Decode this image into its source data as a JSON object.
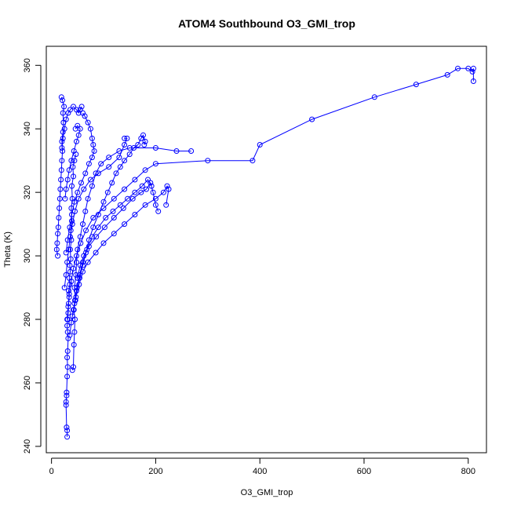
{
  "chart_data": {
    "type": "scatter",
    "title": "ATOM4 Southbound O3_GMI_trop",
    "xlabel": "O3_GMI_trop",
    "ylabel": "Theta (K)",
    "xlim": [
      -10,
      835
    ],
    "ylim": [
      238,
      366
    ],
    "xticks": [
      0,
      200,
      400,
      600,
      800
    ],
    "yticks": [
      240,
      260,
      280,
      300,
      320,
      340,
      360
    ],
    "grid": false,
    "legend": "none",
    "marker": "open-circle",
    "connected": true,
    "color": "#0000ff",
    "series": [
      {
        "points": [
          [
            30,
            243
          ],
          [
            30,
            245
          ],
          [
            29,
            246
          ],
          [
            28,
            253
          ],
          [
            28,
            254
          ],
          [
            29,
            256
          ],
          [
            29,
            257
          ],
          [
            30,
            262
          ],
          [
            31,
            265
          ],
          [
            30,
            268
          ],
          [
            31,
            270
          ],
          [
            32,
            274
          ],
          [
            31,
            276
          ],
          [
            30,
            278
          ],
          [
            31,
            280
          ],
          [
            32,
            282
          ],
          [
            33,
            285
          ],
          [
            34,
            287
          ],
          [
            33,
            289
          ],
          [
            35,
            291
          ],
          [
            34,
            293
          ],
          [
            36,
            295
          ],
          [
            35,
            297
          ],
          [
            37,
            299
          ],
          [
            36,
            302
          ],
          [
            38,
            305
          ],
          [
            37,
            308
          ],
          [
            39,
            311
          ],
          [
            38,
            315
          ],
          [
            40,
            318
          ],
          [
            39,
            322
          ],
          [
            42,
            325
          ],
          [
            41,
            328
          ],
          [
            44,
            330
          ],
          [
            47,
            332
          ]
        ]
      },
      {
        "points": [
          [
            12,
            300
          ],
          [
            10,
            302
          ],
          [
            11,
            304
          ],
          [
            12,
            307
          ],
          [
            13,
            309
          ],
          [
            14,
            312
          ],
          [
            15,
            315
          ],
          [
            16,
            318
          ],
          [
            17,
            321
          ],
          [
            18,
            324
          ],
          [
            19,
            327
          ],
          [
            20,
            330
          ],
          [
            21,
            333
          ],
          [
            20,
            336
          ],
          [
            22,
            339
          ],
          [
            23,
            342
          ],
          [
            22,
            345
          ],
          [
            24,
            347
          ],
          [
            21,
            349
          ],
          [
            19,
            350
          ]
        ]
      },
      {
        "points": [
          [
            40,
            264
          ],
          [
            42,
            265
          ],
          [
            43,
            272
          ],
          [
            44,
            276
          ],
          [
            45,
            280
          ],
          [
            43,
            283
          ],
          [
            46,
            286
          ],
          [
            44,
            290
          ],
          [
            47,
            294
          ],
          [
            48,
            298
          ],
          [
            50,
            302
          ],
          [
            55,
            306
          ],
          [
            60,
            310
          ],
          [
            65,
            314
          ],
          [
            70,
            318
          ],
          [
            78,
            322
          ],
          [
            85,
            326
          ],
          [
            95,
            329
          ],
          [
            110,
            331
          ],
          [
            130,
            333
          ],
          [
            150,
            334
          ],
          [
            200,
            334
          ],
          [
            240,
            333
          ],
          [
            268,
            333
          ]
        ]
      },
      {
        "points": [
          [
            30,
            280
          ],
          [
            32,
            284
          ],
          [
            34,
            288
          ],
          [
            38,
            292
          ],
          [
            42,
            296
          ],
          [
            48,
            300
          ],
          [
            56,
            304
          ],
          [
            66,
            308
          ],
          [
            80,
            312
          ],
          [
            100,
            315
          ],
          [
            120,
            318
          ],
          [
            140,
            321
          ],
          [
            160,
            324
          ],
          [
            180,
            327
          ],
          [
            200,
            329
          ],
          [
            300,
            330
          ],
          [
            386,
            330
          ],
          [
            400,
            335
          ],
          [
            500,
            343
          ],
          [
            620,
            350
          ],
          [
            700,
            354
          ],
          [
            760,
            357
          ],
          [
            780,
            359
          ],
          [
            800,
            359
          ],
          [
            808,
            358
          ],
          [
            810,
            359
          ],
          [
            810,
            355
          ]
        ]
      },
      {
        "points": [
          [
            35,
            275
          ],
          [
            38,
            279
          ],
          [
            42,
            283
          ],
          [
            47,
            287
          ],
          [
            53,
            291
          ],
          [
            60,
            295
          ],
          [
            70,
            298
          ],
          [
            85,
            301
          ],
          [
            100,
            304
          ],
          [
            120,
            307
          ],
          [
            140,
            310
          ],
          [
            160,
            313
          ],
          [
            180,
            316
          ],
          [
            200,
            318
          ],
          [
            215,
            320
          ],
          [
            222,
            322
          ],
          [
            225,
            321
          ],
          [
            220,
            316
          ]
        ]
      },
      {
        "points": [
          [
            25,
            290
          ],
          [
            28,
            294
          ],
          [
            30,
            298
          ],
          [
            33,
            302
          ],
          [
            36,
            306
          ],
          [
            40,
            310
          ],
          [
            45,
            314
          ],
          [
            52,
            318
          ],
          [
            62,
            321
          ],
          [
            75,
            324
          ],
          [
            90,
            326
          ],
          [
            110,
            328
          ],
          [
            130,
            331
          ],
          [
            140,
            335
          ],
          [
            145,
            337
          ],
          [
            140,
            337
          ]
        ]
      },
      {
        "points": [
          [
            50,
            293
          ],
          [
            55,
            297
          ],
          [
            62,
            300
          ],
          [
            72,
            303
          ],
          [
            86,
            306
          ],
          [
            102,
            309
          ],
          [
            120,
            312
          ],
          [
            138,
            315
          ],
          [
            156,
            318
          ],
          [
            172,
            320
          ],
          [
            182,
            321
          ],
          [
            190,
            323
          ],
          [
            195,
            320
          ],
          [
            200,
            316
          ],
          [
            205,
            314
          ]
        ]
      },
      {
        "points": [
          [
            20,
            334
          ],
          [
            22,
            337
          ],
          [
            25,
            340
          ],
          [
            28,
            343
          ],
          [
            32,
            345
          ],
          [
            36,
            346
          ],
          [
            42,
            347
          ],
          [
            48,
            346
          ],
          [
            52,
            345
          ],
          [
            55,
            346
          ],
          [
            58,
            347
          ]
        ]
      },
      {
        "points": [
          [
            40,
            281
          ],
          [
            44,
            285
          ],
          [
            48,
            289
          ],
          [
            54,
            293
          ],
          [
            60,
            297
          ],
          [
            66,
            301
          ],
          [
            72,
            305
          ],
          [
            80,
            309
          ],
          [
            90,
            313
          ],
          [
            100,
            317
          ],
          [
            108,
            320
          ],
          [
            116,
            323
          ],
          [
            124,
            326
          ],
          [
            132,
            328
          ],
          [
            140,
            330
          ],
          [
            150,
            332
          ],
          [
            158,
            334
          ],
          [
            166,
            335
          ],
          [
            172,
            337
          ],
          [
            176,
            338
          ],
          [
            180,
            336
          ],
          [
            178,
            335
          ]
        ]
      },
      {
        "points": [
          [
            28,
            301
          ],
          [
            31,
            305
          ],
          [
            35,
            309
          ],
          [
            39,
            313
          ],
          [
            44,
            317
          ],
          [
            50,
            320
          ],
          [
            57,
            323
          ],
          [
            65,
            326
          ],
          [
            72,
            329
          ],
          [
            78,
            331
          ],
          [
            82,
            333
          ],
          [
            80,
            335
          ],
          [
            78,
            337
          ],
          [
            75,
            340
          ],
          [
            70,
            342
          ],
          [
            64,
            344
          ],
          [
            60,
            345
          ]
        ]
      },
      {
        "points": [
          [
            45,
            286
          ],
          [
            49,
            290
          ],
          [
            54,
            294
          ],
          [
            60,
            298
          ],
          [
            68,
            302
          ],
          [
            78,
            306
          ],
          [
            90,
            309
          ],
          [
            104,
            312
          ],
          [
            118,
            314
          ],
          [
            132,
            316
          ],
          [
            146,
            318
          ],
          [
            160,
            320
          ],
          [
            174,
            322
          ],
          [
            185,
            324
          ],
          [
            192,
            322
          ]
        ]
      },
      {
        "points": [
          [
            26,
            318
          ],
          [
            28,
            321
          ],
          [
            31,
            324
          ],
          [
            34,
            327
          ],
          [
            38,
            330
          ],
          [
            43,
            333
          ],
          [
            48,
            336
          ],
          [
            52,
            338
          ],
          [
            55,
            340
          ],
          [
            50,
            341
          ],
          [
            46,
            340
          ]
        ]
      }
    ]
  }
}
